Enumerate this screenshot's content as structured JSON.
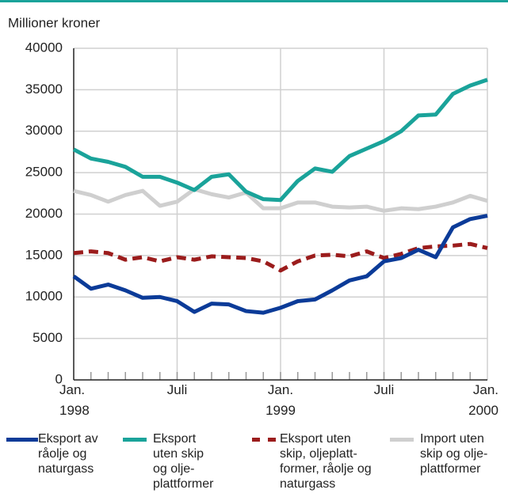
{
  "chart_data": {
    "type": "line",
    "title": "Millioner kroner",
    "categories": [
      "Jan. 1998",
      null,
      null,
      null,
      null,
      null,
      "Juli",
      null,
      null,
      null,
      null,
      null,
      "Jan. 1999",
      null,
      null,
      null,
      null,
      null,
      "Juli",
      null,
      null,
      null,
      null,
      null,
      "Jan. 2000"
    ],
    "series": [
      {
        "name": "Eksport av råolje og naturgass",
        "color": "#0b3b98",
        "dash": false,
        "values": [
          12500,
          11000,
          11500,
          10800,
          9900,
          10000,
          9500,
          8200,
          9200,
          9100,
          8300,
          8100,
          8700,
          9500,
          9700,
          10800,
          12000,
          12500,
          14300,
          14700,
          15700,
          14800,
          18400,
          19400,
          19800
        ]
      },
      {
        "name": "Eksport uten skip og olje-plattformer",
        "color": "#1aa39a",
        "dash": false,
        "values": [
          27800,
          26700,
          26300,
          25700,
          24500,
          24500,
          23800,
          22900,
          24500,
          24800,
          22700,
          21800,
          21700,
          24000,
          25500,
          25100,
          27000,
          27900,
          28800,
          30000,
          31900,
          32000,
          34500,
          35500,
          36200
        ]
      },
      {
        "name": "Eksport uten skip, oljeplatt-former, råolje og naturgass",
        "color": "#9b1c1c",
        "dash": true,
        "values": [
          15300,
          15500,
          15300,
          14500,
          14800,
          14300,
          14800,
          14500,
          14900,
          14800,
          14700,
          14300,
          13200,
          14300,
          15000,
          15100,
          14900,
          15500,
          14700,
          15200,
          15900,
          16100,
          16200,
          16400,
          15900
        ]
      },
      {
        "name": "Import uten skip og olje-plattformer",
        "color": "#cfcfcf",
        "dash": false,
        "values": [
          22800,
          22300,
          21500,
          22300,
          22800,
          21000,
          21500,
          23000,
          22400,
          22000,
          22600,
          20700,
          20700,
          21400,
          21400,
          20900,
          20800,
          20900,
          20400,
          20700,
          20600,
          20900,
          21400,
          22200,
          21600
        ]
      }
    ],
    "ylim": [
      0,
      40000
    ],
    "yticks": [
      0,
      5000,
      10000,
      15000,
      20000,
      25000,
      30000,
      35000,
      40000
    ],
    "grid": true,
    "legend": "bottom"
  }
}
